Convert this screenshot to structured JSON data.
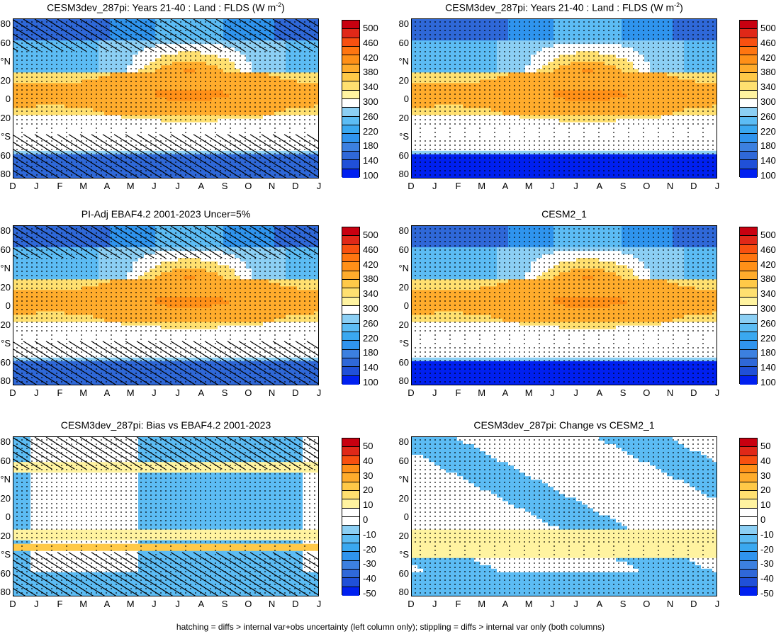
{
  "footer": "hatching = diffs > internal var+obs uncertainty (left column only); stippling = diffs > internal var only (both columns)",
  "months": [
    "D",
    "J",
    "F",
    "M",
    "A",
    "M",
    "J",
    "J",
    "A",
    "S",
    "O",
    "N",
    "D",
    "J"
  ],
  "lat_labels": [
    "80",
    "60",
    "°N",
    "20",
    "0",
    "20",
    "°S",
    "60",
    "80"
  ],
  "colors": {
    "abs": [
      "#0020f0",
      "#2050d8",
      "#2f68d8",
      "#3c80e0",
      "#2f94ee",
      "#3aa8f0",
      "#5cbcf4",
      "#8ccff4",
      "#ffffff",
      "#fff3a0",
      "#ffe070",
      "#ffc948",
      "#ffac2c",
      "#ff9018",
      "#ff7510",
      "#f85010",
      "#e02818",
      "#c80010"
    ],
    "diff": [
      "#0020f0",
      "#2050d8",
      "#2f68d8",
      "#3c80e0",
      "#2f94ee",
      "#3aa8f0",
      "#5cbcf4",
      "#8ccff4",
      "#ffffff",
      "#ffffff",
      "#fff3a0",
      "#ffe070",
      "#ffc948",
      "#ffac2c",
      "#ff9018",
      "#f85010",
      "#e02818",
      "#c80010"
    ]
  },
  "colorbar_abs": [
    "500",
    "460",
    "420",
    "380",
    "340",
    "300",
    "260",
    "220",
    "180",
    "140",
    "100"
  ],
  "colorbar_diff": [
    "50",
    "40",
    "30",
    "20",
    "10",
    "0",
    "-10",
    "-20",
    "-30",
    "-40",
    "-50"
  ],
  "panels": [
    {
      "title": "CESM3dev_287pi: Years 21-40 : Land : FLDS (W m",
      "sup": "-2",
      "title_end": ")"
    },
    {
      "title": "CESM3dev_287pi: Years 21-40 : Land : FLDS (W m",
      "sup": "-2",
      "title_end": ")"
    },
    {
      "title": "PI-Adj EBAF4.2 2001-2023 Uncer=5%",
      "sup": "",
      "title_end": ""
    },
    {
      "title": "CESM2_1",
      "sup": "",
      "title_end": ""
    },
    {
      "title": "CESM3dev_287pi: Bias vs EBAF4.2 2001-2023",
      "sup": "",
      "title_end": ""
    },
    {
      "title": "CESM3dev_287pi: Change vs CESM2_1",
      "sup": "",
      "title_end": ""
    }
  ],
  "chart_data": [
    {
      "type": "heatmap",
      "title": "CESM3dev_287pi: Years 21-40 : Land : FLDS (W m-2)",
      "x": [
        "D",
        "J",
        "F",
        "M",
        "A",
        "M",
        "J",
        "J",
        "A",
        "S",
        "O",
        "N",
        "D",
        "J"
      ],
      "y_ticks": [
        "80",
        "60",
        "°N",
        "20",
        "0",
        "20",
        "°S",
        "60",
        "80"
      ],
      "zlevels": [
        100,
        140,
        180,
        220,
        260,
        300,
        340,
        380,
        420,
        460,
        500
      ],
      "hatching": true,
      "stippling": true
    },
    {
      "type": "heatmap",
      "title": "CESM3dev_287pi: Years 21-40 : Land : FLDS (W m-2)",
      "x": [
        "D",
        "J",
        "F",
        "M",
        "A",
        "M",
        "J",
        "J",
        "A",
        "S",
        "O",
        "N",
        "D",
        "J"
      ],
      "y_ticks": [
        "80",
        "60",
        "°N",
        "20",
        "0",
        "20",
        "°S",
        "60",
        "80"
      ],
      "zlevels": [
        100,
        140,
        180,
        220,
        260,
        300,
        340,
        380,
        420,
        460,
        500
      ],
      "hatching": false,
      "stippling": true
    },
    {
      "type": "heatmap",
      "title": "PI-Adj EBAF4.2 2001-2023 Uncer=5%",
      "x": [
        "D",
        "J",
        "F",
        "M",
        "A",
        "M",
        "J",
        "J",
        "A",
        "S",
        "O",
        "N",
        "D",
        "J"
      ],
      "y_ticks": [
        "80",
        "60",
        "°N",
        "20",
        "0",
        "20",
        "°S",
        "60",
        "80"
      ],
      "zlevels": [
        100,
        140,
        180,
        220,
        260,
        300,
        340,
        380,
        420,
        460,
        500
      ],
      "hatching": true,
      "stippling": true
    },
    {
      "type": "heatmap",
      "title": "CESM2_1",
      "x": [
        "D",
        "J",
        "F",
        "M",
        "A",
        "M",
        "J",
        "J",
        "A",
        "S",
        "O",
        "N",
        "D",
        "J"
      ],
      "y_ticks": [
        "80",
        "60",
        "°N",
        "20",
        "0",
        "20",
        "°S",
        "60",
        "80"
      ],
      "zlevels": [
        100,
        140,
        180,
        220,
        260,
        300,
        340,
        380,
        420,
        460,
        500
      ],
      "hatching": false,
      "stippling": true
    },
    {
      "type": "heatmap",
      "title": "CESM3dev_287pi: Bias vs EBAF4.2 2001-2023",
      "x": [
        "D",
        "J",
        "F",
        "M",
        "A",
        "M",
        "J",
        "J",
        "A",
        "S",
        "O",
        "N",
        "D",
        "J"
      ],
      "y_ticks": [
        "80",
        "60",
        "°N",
        "20",
        "0",
        "20",
        "°S",
        "60",
        "80"
      ],
      "zlevels": [
        -50,
        -40,
        -30,
        -20,
        -10,
        0,
        10,
        20,
        30,
        40,
        50
      ],
      "hatching": true,
      "stippling": true
    },
    {
      "type": "heatmap",
      "title": "CESM3dev_287pi: Change vs CESM2_1",
      "x": [
        "D",
        "J",
        "F",
        "M",
        "A",
        "M",
        "J",
        "J",
        "A",
        "S",
        "O",
        "N",
        "D",
        "J"
      ],
      "y_ticks": [
        "80",
        "60",
        "°N",
        "20",
        "0",
        "20",
        "°S",
        "60",
        "80"
      ],
      "zlevels": [
        -50,
        -40,
        -30,
        -20,
        -10,
        0,
        10,
        20,
        30,
        40,
        50
      ],
      "hatching": false,
      "stippling": true
    }
  ]
}
